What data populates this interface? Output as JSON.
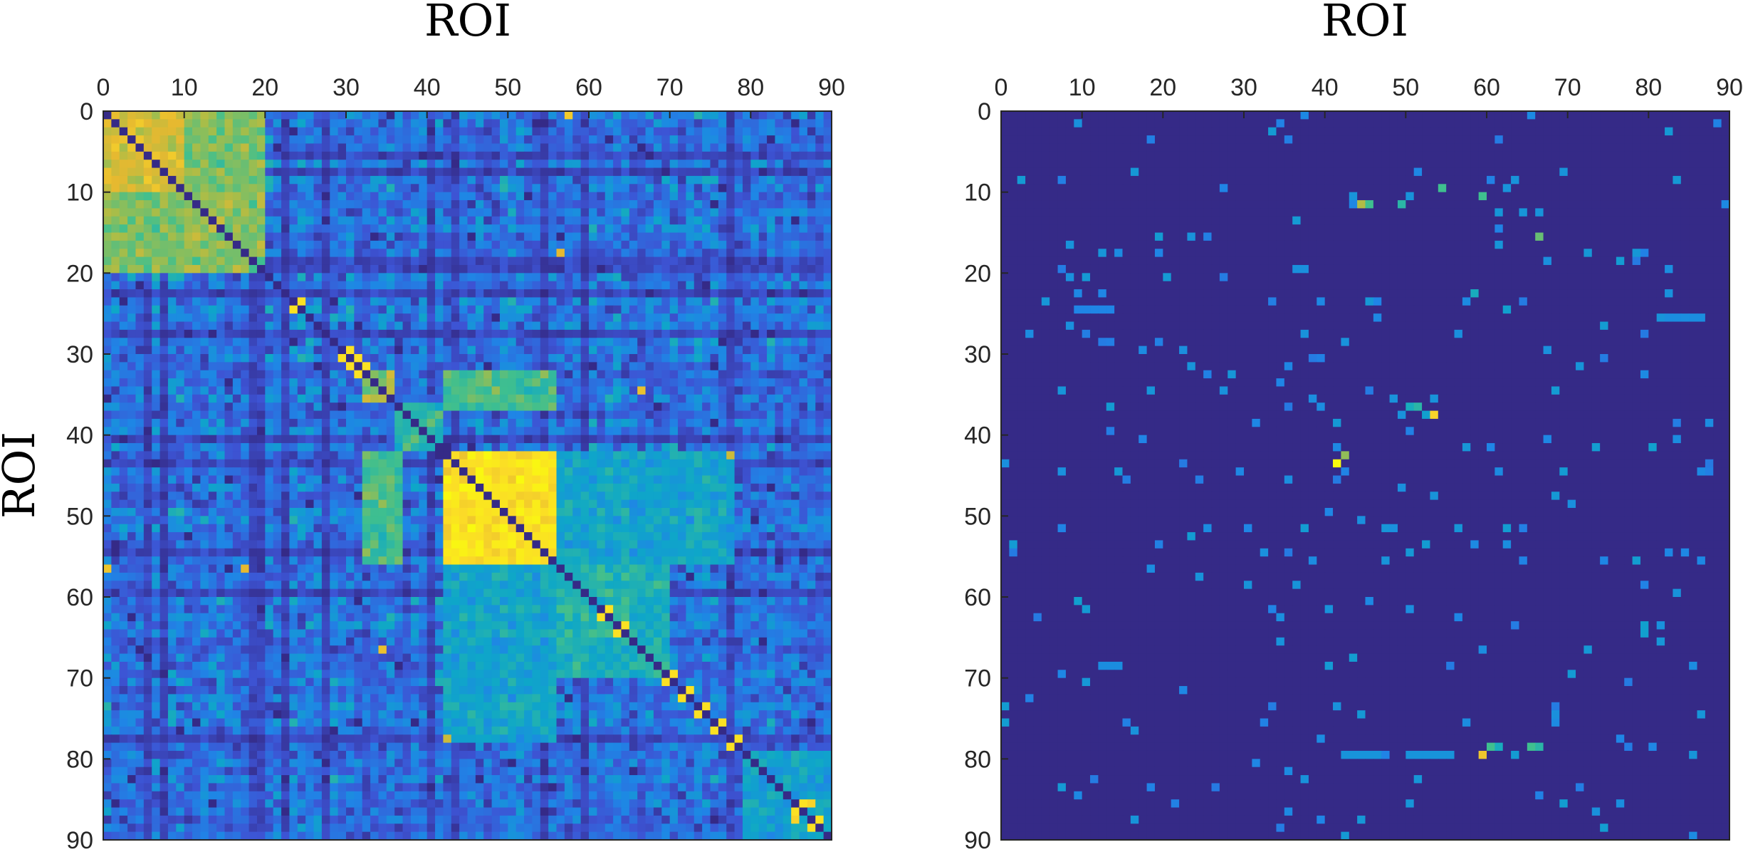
{
  "chart_data": [
    {
      "type": "heatmap",
      "panel": "left",
      "xlabel": "ROI",
      "ylabel": "ROI",
      "xlim": [
        0,
        90
      ],
      "ylim": [
        0,
        90
      ],
      "x_ticks": [
        0,
        10,
        20,
        30,
        40,
        50,
        60,
        70,
        80,
        90
      ],
      "y_ticks": [
        0,
        10,
        20,
        30,
        40,
        50,
        60,
        70,
        80,
        90
      ],
      "matrix_size": 90,
      "colormap": "parula",
      "colormap_stops": [
        "#352a87",
        "#3d54d4",
        "#1f85e6",
        "#0ea7c8",
        "#3fbf8f",
        "#a5bd4a",
        "#e6b930",
        "#fbda28",
        "#f9fb0e"
      ],
      "diagonal_value": 0,
      "blocks": [
        {
          "rows": [
            1,
            10
          ],
          "cols": [
            1,
            10
          ],
          "value": 0.72
        },
        {
          "rows": [
            11,
            20
          ],
          "cols": [
            11,
            20
          ],
          "value": 0.6
        },
        {
          "rows": [
            1,
            10
          ],
          "cols": [
            11,
            20
          ],
          "value": 0.58
        },
        {
          "rows": [
            11,
            20
          ],
          "cols": [
            1,
            10
          ],
          "value": 0.58
        },
        {
          "rows": [
            33,
            36
          ],
          "cols": [
            33,
            36
          ],
          "value": 0.62
        },
        {
          "rows": [
            37,
            42
          ],
          "cols": [
            37,
            42
          ],
          "value": 0.45
        },
        {
          "rows": [
            33,
            37
          ],
          "cols": [
            43,
            56
          ],
          "value": 0.5
        },
        {
          "rows": [
            43,
            56
          ],
          "cols": [
            33,
            37
          ],
          "value": 0.5
        },
        {
          "rows": [
            43,
            56
          ],
          "cols": [
            43,
            56
          ],
          "value": 0.9
        },
        {
          "rows": [
            57,
            70
          ],
          "cols": [
            57,
            70
          ],
          "value": 0.42
        },
        {
          "rows": [
            43,
            56
          ],
          "cols": [
            57,
            78
          ],
          "value": 0.36
        },
        {
          "rows": [
            57,
            78
          ],
          "cols": [
            43,
            56
          ],
          "value": 0.36
        },
        {
          "rows": [
            80,
            90
          ],
          "cols": [
            80,
            90
          ],
          "value": 0.35
        }
      ],
      "bright_cells": [
        {
          "row": 1,
          "col": 58,
          "value": 0.82
        },
        {
          "row": 57,
          "col": 1,
          "value": 0.8
        },
        {
          "row": 57,
          "col": 18,
          "value": 0.75
        },
        {
          "row": 18,
          "col": 57,
          "value": 0.75
        },
        {
          "row": 35,
          "col": 67,
          "value": 0.78
        },
        {
          "row": 67,
          "col": 35,
          "value": 0.78
        },
        {
          "row": 78,
          "col": 43,
          "value": 0.7
        },
        {
          "row": 43,
          "col": 78,
          "value": 0.7
        },
        {
          "row": 86,
          "col": 88,
          "value": 0.85
        },
        {
          "row": 88,
          "col": 86,
          "value": 0.85
        }
      ],
      "yellow_diagonal_neighbors": [
        24,
        30,
        31,
        32,
        52,
        54,
        62,
        64,
        70,
        72,
        74,
        76,
        78,
        86,
        88
      ]
    },
    {
      "type": "heatmap",
      "panel": "right",
      "xlabel": "ROI",
      "xlim": [
        0,
        90
      ],
      "ylim": [
        0,
        90
      ],
      "x_ticks": [
        0,
        10,
        20,
        30,
        40,
        50,
        60,
        70,
        80,
        90
      ],
      "y_ticks": [
        0,
        10,
        20,
        30,
        40,
        50,
        60,
        70,
        80,
        90
      ],
      "matrix_size": 90,
      "colormap": "parula",
      "background_value": 0,
      "sparse_entries": [
        {
          "row": 44,
          "col": 42,
          "value": 1.0
        },
        {
          "row": 43,
          "col": 43,
          "value": 0.6
        },
        {
          "row": 38,
          "col": 54,
          "value": 0.85
        },
        {
          "row": 37,
          "col": 52,
          "value": 0.45
        },
        {
          "row": 37,
          "col": 51,
          "value": 0.4
        },
        {
          "row": 38,
          "col": 53,
          "value": 0.35
        },
        {
          "row": 36,
          "col": 54,
          "value": 0.3
        },
        {
          "row": 12,
          "col": 45,
          "value": 0.65
        },
        {
          "row": 12,
          "col": 46,
          "value": 0.5
        },
        {
          "row": 11,
          "col": 44,
          "value": 0.3
        },
        {
          "row": 12,
          "col": 50,
          "value": 0.45
        },
        {
          "row": 11,
          "col": 51,
          "value": 0.3
        },
        {
          "row": 10,
          "col": 55,
          "value": 0.5
        },
        {
          "row": 11,
          "col": 60,
          "value": 0.5
        },
        {
          "row": 10,
          "col": 63,
          "value": 0.3
        },
        {
          "row": 9,
          "col": 64,
          "value": 0.3
        },
        {
          "row": 13,
          "col": 67,
          "value": 0.3
        },
        {
          "row": 16,
          "col": 67,
          "value": 0.55
        },
        {
          "row": 80,
          "col": 60,
          "value": 0.8
        },
        {
          "row": 79,
          "col": 61,
          "value": 0.5
        },
        {
          "row": 79,
          "col": 62,
          "value": 0.4
        },
        {
          "row": 79,
          "col": 66,
          "value": 0.5
        },
        {
          "row": 79,
          "col": 67,
          "value": 0.45
        },
        {
          "row": 23,
          "col": 59,
          "value": 0.4
        },
        {
          "row": 25,
          "col": 63,
          "value": 0.35
        },
        {
          "row": 58,
          "col": 25,
          "value": 0.3
        },
        {
          "row": 61,
          "col": 10,
          "value": 0.35
        },
        {
          "row": 64,
          "col": 80,
          "value": 0.35
        },
        {
          "row": 65,
          "col": 80,
          "value": 0.35
        },
        {
          "row": 42,
          "col": 81,
          "value": 0.35
        },
        {
          "row": 26,
          "col": 82,
          "value": 0.3
        }
      ],
      "row_streaks": [
        {
          "row": 80,
          "cols": [
            43,
            47
          ],
          "value": 0.3
        },
        {
          "row": 80,
          "cols": [
            51,
            56
          ],
          "value": 0.3
        },
        {
          "row": 69,
          "cols": [
            13,
            15
          ],
          "value": 0.28
        },
        {
          "row": 26,
          "cols": [
            82,
            87
          ],
          "value": 0.28
        },
        {
          "row": 25,
          "cols": [
            10,
            14
          ],
          "value": 0.25
        }
      ]
    }
  ]
}
